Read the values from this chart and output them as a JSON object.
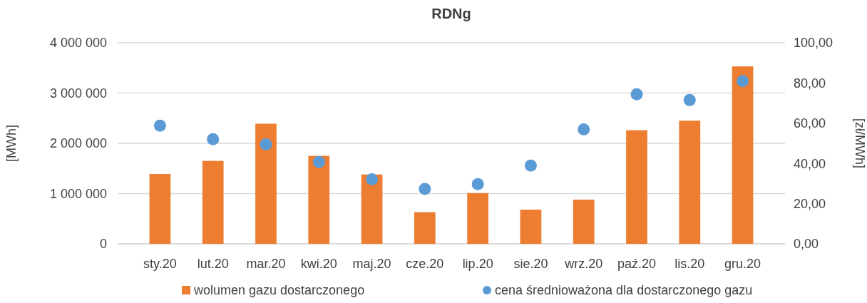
{
  "chart_data": {
    "type": "bar",
    "title": "RDNg",
    "ylabel": "[MWh]",
    "y2label": "[zł/MWh]",
    "categories": [
      "sty.20",
      "lut.20",
      "mar.20",
      "kwi.20",
      "maj.20",
      "cze.20",
      "lip.20",
      "sie.20",
      "wrz.20",
      "paź.20",
      "lis.20",
      "gru.20"
    ],
    "series": [
      {
        "name": "wolumen gazu dostarczonego",
        "color": "#ed7d31",
        "values": [
          1390000,
          1650000,
          2390000,
          1750000,
          1380000,
          630000,
          1010000,
          680000,
          880000,
          2260000,
          2450000,
          3530000
        ]
      },
      {
        "name": "cena średnioważona dla dostarczonego gazu",
        "type": "scatter",
        "axis": "y2",
        "color": "#5b9bd5",
        "values": [
          58.8,
          52.0,
          49.5,
          40.7,
          32.1,
          27.3,
          29.7,
          38.9,
          56.9,
          74.4,
          71.5,
          80.9
        ]
      }
    ],
    "ylim": [
      0,
      4000000
    ],
    "yticks": [
      {
        "value": 0,
        "label": "0"
      },
      {
        "value": 1000000,
        "label": "1 000 000"
      },
      {
        "value": 2000000,
        "label": "2 000 000"
      },
      {
        "value": 3000000,
        "label": "3 000 000"
      },
      {
        "value": 4000000,
        "label": "4 000 000"
      }
    ],
    "y2lim": [
      0,
      100
    ],
    "y2ticks": [
      {
        "value": 0,
        "label": "0,00"
      },
      {
        "value": 20,
        "label": "20,00"
      },
      {
        "value": 40,
        "label": "40,00"
      },
      {
        "value": 60,
        "label": "60,00"
      },
      {
        "value": 80,
        "label": "80,00"
      },
      {
        "value": 100,
        "label": "100,00"
      }
    ],
    "grid": "y",
    "legend": "bottom",
    "marker": "circle"
  }
}
